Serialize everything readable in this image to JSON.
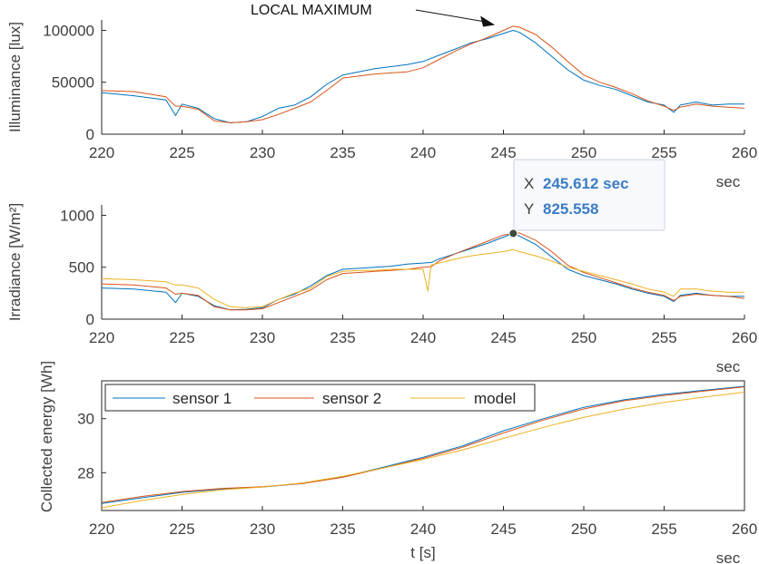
{
  "chart_data": [
    {
      "type": "line",
      "ylabel": "Illuminance [lux]",
      "xlabel": "",
      "x_unit_label": "sec",
      "xlim": [
        220,
        260
      ],
      "ylim": [
        0,
        110000
      ],
      "x_ticks": [
        220,
        225,
        230,
        235,
        240,
        245,
        250,
        255,
        260
      ],
      "y_ticks": [
        0,
        50000,
        100000
      ],
      "annotation": "LOCAL MAXIMUM",
      "annotation_target": [
        245.6,
        100000
      ],
      "x": [
        220,
        222,
        224,
        224.6,
        225,
        226,
        227,
        228,
        229,
        230,
        231,
        232,
        233,
        234,
        235,
        236,
        237,
        238,
        239,
        240,
        241,
        242,
        243,
        244,
        245,
        245.6,
        246,
        247,
        248,
        249,
        250,
        251,
        252,
        253,
        254,
        255,
        255.6,
        256,
        257,
        258,
        259,
        260
      ],
      "series": [
        {
          "name": "sensor 1",
          "color": "#0072bd",
          "values": [
            40000,
            37000,
            33000,
            18000,
            29000,
            25000,
            15000,
            11000,
            12000,
            17000,
            25000,
            28000,
            36000,
            48000,
            57000,
            60000,
            63000,
            65000,
            67000,
            70000,
            76000,
            82000,
            88000,
            92000,
            97000,
            100000,
            98000,
            88000,
            75000,
            62000,
            52000,
            47000,
            43000,
            37000,
            31000,
            28000,
            21000,
            28000,
            31000,
            28000,
            29000,
            29000
          ]
        },
        {
          "name": "sensor 2",
          "color": "#d95319",
          "values": [
            42000,
            41000,
            36000,
            27000,
            27000,
            24000,
            13000,
            11000,
            12000,
            14000,
            19000,
            25000,
            31000,
            42000,
            54000,
            56000,
            58000,
            59000,
            60000,
            64000,
            72000,
            80000,
            87000,
            93000,
            100000,
            104000,
            103000,
            96000,
            84000,
            70000,
            57000,
            50000,
            45000,
            39000,
            32000,
            27000,
            23000,
            26000,
            29000,
            27000,
            26000,
            25000
          ]
        }
      ]
    },
    {
      "type": "line",
      "ylabel": "Irradiance [W/m²]",
      "xlabel": "",
      "x_unit_label": "sec",
      "xlim": [
        220,
        260
      ],
      "ylim": [
        0,
        1100
      ],
      "x_ticks": [
        220,
        225,
        230,
        235,
        240,
        245,
        250,
        255,
        260
      ],
      "y_ticks": [
        0,
        500,
        1000
      ],
      "datatip": {
        "x_key": "X",
        "x_value": "245.612 sec",
        "y_key": "Y",
        "y_value": "825.558",
        "point": [
          245.612,
          825.558
        ]
      },
      "x": [
        220,
        222,
        224,
        224.6,
        225,
        226,
        227,
        228,
        229,
        230,
        231,
        232,
        233,
        234,
        235,
        236,
        237,
        238,
        239,
        240,
        240.3,
        240.5,
        241,
        242,
        243,
        244,
        245,
        245.6,
        246,
        247,
        248,
        249,
        250,
        251,
        252,
        253,
        254,
        255,
        255.6,
        256,
        257,
        258,
        259,
        260
      ],
      "series": [
        {
          "name": "sensor 1",
          "color": "#0072bd",
          "values": [
            300,
            290,
            260,
            160,
            250,
            220,
            130,
            90,
            95,
            110,
            190,
            240,
            320,
            420,
            480,
            490,
            500,
            510,
            530,
            540,
            545,
            545,
            580,
            630,
            680,
            730,
            790,
            825,
            800,
            720,
            600,
            480,
            420,
            380,
            340,
            290,
            250,
            220,
            170,
            230,
            250,
            230,
            220,
            220
          ]
        },
        {
          "name": "sensor 2",
          "color": "#d95319",
          "values": [
            340,
            330,
            300,
            240,
            250,
            230,
            120,
            90,
            90,
            100,
            160,
            220,
            280,
            380,
            440,
            450,
            460,
            470,
            480,
            500,
            505,
            505,
            560,
            630,
            690,
            750,
            810,
            825,
            830,
            760,
            650,
            520,
            450,
            400,
            350,
            300,
            260,
            230,
            180,
            220,
            240,
            230,
            220,
            200
          ]
        },
        {
          "name": "model",
          "color": "#edb120",
          "values": [
            390,
            380,
            360,
            330,
            330,
            300,
            190,
            120,
            110,
            120,
            190,
            250,
            300,
            410,
            460,
            470,
            470,
            480,
            480,
            480,
            270,
            520,
            540,
            580,
            610,
            630,
            650,
            670,
            650,
            610,
            560,
            500,
            460,
            420,
            380,
            340,
            290,
            260,
            220,
            290,
            290,
            270,
            260,
            260
          ]
        }
      ]
    },
    {
      "type": "line",
      "ylabel": "Collected energy [Wh]",
      "xlabel": "t [s]",
      "x_unit_label": "sec",
      "xlim": [
        220,
        260
      ],
      "ylim": [
        26.6,
        31.4
      ],
      "x_ticks": [
        220,
        225,
        230,
        235,
        240,
        245,
        250,
        255,
        260
      ],
      "y_ticks": [
        28,
        30
      ],
      "legend": {
        "placement": "top-left",
        "entries": [
          "sensor 1",
          "sensor 2",
          "model"
        ]
      },
      "x": [
        220,
        222.5,
        225,
        227.5,
        230,
        232.5,
        235,
        237.5,
        240,
        242.5,
        245,
        247.5,
        250,
        252.5,
        255,
        257.5,
        260
      ],
      "series": [
        {
          "name": "sensor 1",
          "color": "#0072bd",
          "values": [
            26.86,
            27.07,
            27.27,
            27.4,
            27.47,
            27.6,
            27.85,
            28.2,
            28.57,
            29.0,
            29.55,
            30.0,
            30.42,
            30.7,
            30.9,
            31.05,
            31.2
          ]
        },
        {
          "name": "sensor 2",
          "color": "#d95319",
          "values": [
            26.9,
            27.12,
            27.3,
            27.42,
            27.48,
            27.6,
            27.83,
            28.17,
            28.53,
            28.95,
            29.47,
            29.95,
            30.36,
            30.66,
            30.86,
            31.02,
            31.18
          ]
        },
        {
          "name": "model",
          "color": "#edb120",
          "values": [
            26.7,
            26.97,
            27.19,
            27.37,
            27.47,
            27.62,
            27.87,
            28.17,
            28.49,
            28.85,
            29.27,
            29.68,
            30.05,
            30.35,
            30.6,
            30.8,
            30.98
          ]
        }
      ]
    }
  ]
}
